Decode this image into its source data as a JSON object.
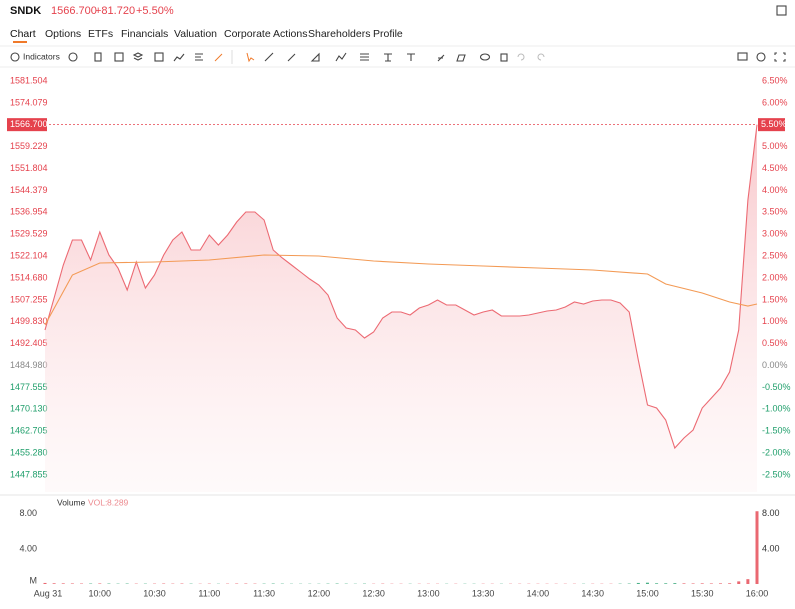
{
  "header": {
    "symbol": "SNDK",
    "price": "1566.700",
    "change": "+81.720",
    "change_pct": "+5.50%"
  },
  "tabs": [
    "Chart",
    "Options",
    "ETFs",
    "Financials",
    "Valuation",
    "Corporate Actions",
    "Shareholders",
    "Profile"
  ],
  "toolbar": {
    "indicators": "Indicators"
  },
  "chart_data": [
    {
      "type": "line",
      "fill": true,
      "xlim": [
        "09:30",
        "16:00"
      ],
      "xticks": [
        {
          "value": "09:30",
          "label": "Aug 31"
        },
        "10:00",
        "10:30",
        "11:00",
        "11:30",
        "12:00",
        "12:30",
        "13:00",
        "13:30",
        "14:00",
        "14:30",
        "15:00",
        "15:30",
        "16:00"
      ],
      "ylim": [
        1442.09,
        1585.24
      ],
      "yticks": [
        1581.504,
        1574.079,
        1559.229,
        1551.804,
        1544.379,
        1536.954,
        1529.529,
        1522.104,
        {
          "value": 1514.68,
          "label": "1514.680"
        },
        1507.255,
        {
          "value": 1499.83,
          "label": "1499.830"
        },
        1492.405,
        {
          "value": 1484.98,
          "label": "1484.980"
        },
        1477.555,
        {
          "value": 1470.13,
          "label": "1470.130"
        },
        1462.705,
        {
          "value": 1455.28,
          "label": "1455.280"
        },
        1447.855
      ],
      "y2lim": [
        -2.888,
        6.752
      ],
      "y2ticks": [
        {
          "value": 6.5,
          "label": "6.50%"
        },
        {
          "value": 6,
          "label": "6.00%"
        },
        {
          "value": 5,
          "label": "5.00%"
        },
        {
          "value": 4.5,
          "label": "4.50%"
        },
        {
          "value": 4,
          "label": "4.00%"
        },
        {
          "value": 3.5,
          "label": "3.50%"
        },
        {
          "value": 3,
          "label": "3.00%"
        },
        {
          "value": 2.5,
          "label": "2.50%"
        },
        {
          "value": 2,
          "label": "2.00%"
        },
        {
          "value": 1.5,
          "label": "1.50%"
        },
        {
          "value": 1,
          "label": "1.00%"
        },
        {
          "value": 0.5,
          "label": "0.50%"
        },
        {
          "value": 0,
          "label": "0.00%"
        },
        {
          "value": -0.5,
          "label": "-0.50%"
        },
        {
          "value": -1,
          "label": "-1.00%"
        },
        {
          "value": -1.5,
          "label": "-1.50%"
        },
        {
          "value": -2,
          "label": "-2.00%"
        },
        {
          "value": -2.5,
          "label": "-2.50%"
        }
      ],
      "up_color": "#e5424d",
      "down_color": "#1e9e6a",
      "flat_color": "#888888",
      "current": {
        "value": 1566.7,
        "label": "1566.700",
        "pct_label": "5.50%",
        "color": "#e5424d"
      },
      "series": [
        {
          "color": "#ec6a73",
          "x": [
            "09:30",
            "09:35",
            "09:40",
            "09:45",
            "09:50",
            "09:55",
            "10:00",
            "10:05",
            "10:10",
            "10:15",
            "10:20",
            "10:25",
            "10:30",
            "10:35",
            "10:40",
            "10:45",
            "10:50",
            "10:55",
            "11:00",
            "11:05",
            "11:10",
            "11:15",
            "11:20",
            "11:25",
            "11:30",
            "11:35",
            "11:40",
            "11:45",
            "11:50",
            "11:55",
            "12:00",
            "12:05",
            "12:10",
            "12:15",
            "12:20",
            "12:25",
            "12:30",
            "12:35",
            "12:40",
            "12:45",
            "12:50",
            "12:55",
            "13:00",
            "13:05",
            "13:10",
            "13:15",
            "13:20",
            "13:25",
            "13:30",
            "13:35",
            "13:40",
            "13:45",
            "13:50",
            "13:55",
            "14:00",
            "14:05",
            "14:10",
            "14:15",
            "14:20",
            "14:25",
            "14:30",
            "14:35",
            "14:40",
            "14:45",
            "14:50",
            "14:55",
            "15:00",
            "15:05",
            "15:10",
            "15:15",
            "15:20",
            "15:25",
            "15:30",
            "15:35",
            "15:40",
            "15:45",
            "15:50",
            "15:55",
            "16:00"
          ],
          "values": [
            1497.04,
            1507.89,
            1519.09,
            1527.57,
            1527.57,
            1520.78,
            1530.28,
            1522.48,
            1518.07,
            1510.6,
            1520.1,
            1511.28,
            1515.69,
            1522.48,
            1527.57,
            1530.28,
            1524.17,
            1524.17,
            1529.26,
            1525.87,
            1529.26,
            1533.67,
            1537.06,
            1537.06,
            1534.35,
            1524.17,
            1521.46,
            1519.09,
            1516.71,
            1514.34,
            1512.3,
            1508.91,
            1501.11,
            1497.71,
            1497.04,
            1494.32,
            1496.36,
            1501.11,
            1503.14,
            1503.14,
            1502.12,
            1504.5,
            1505.52,
            1507.21,
            1505.52,
            1505.52,
            1503.82,
            1502.12,
            1503.14,
            1503.82,
            1501.78,
            1501.78,
            1501.78,
            1502.12,
            1502.8,
            1503.48,
            1503.82,
            1504.84,
            1506.53,
            1505.86,
            1506.87,
            1507.21,
            1507.21,
            1506.19,
            1503.14,
            1486.86,
            1471.59,
            1470.58,
            1466.5,
            1457.01,
            1460.4,
            1463.11,
            1470.58,
            1473.97,
            1477.36,
            1482.79,
            1497.04,
            1541.13,
            1566.7
          ]
        },
        {
          "color": "#f39a55",
          "x": [
            "09:30",
            "09:45",
            "10:00",
            "10:30",
            "11:00",
            "11:30",
            "12:00",
            "12:30",
            "13:00",
            "13:30",
            "14:00",
            "14:30",
            "15:00",
            "15:10",
            "15:30",
            "15:45",
            "15:55",
            "16:00"
          ],
          "values": [
            1498.73,
            1515.69,
            1519.77,
            1520.1,
            1520.78,
            1522.48,
            1522.14,
            1520.44,
            1519.42,
            1518.75,
            1518.07,
            1517.39,
            1516.03,
            1512.64,
            1509.59,
            1506.53,
            1505.18,
            1505.86
          ]
        }
      ]
    },
    {
      "type": "bar",
      "title": "Volume",
      "value_title": "VOL:",
      "ylim": [
        0,
        9
      ],
      "yticks": [
        {
          "value": 8,
          "label": "8.00"
        },
        {
          "value": 4,
          "label": "4.00"
        },
        {
          "value": 0,
          "label": "M"
        }
      ],
      "series": [
        {
          "name": "Volume",
          "values": [
            0.12,
            0.08,
            0.07,
            0.06,
            0.05,
            0.05,
            0.06,
            0.05,
            0.04,
            0.05,
            0.04,
            0.04,
            0.04,
            0.05,
            0.04,
            0.05,
            0.04,
            0.03,
            0.04,
            0.03,
            0.04,
            0.05,
            0.05,
            0.04,
            0.04,
            0.05,
            0.04,
            0.03,
            0.03,
            0.03,
            0.03,
            0.04,
            0.05,
            0.04,
            0.03,
            0.04,
            0.03,
            0.04,
            0.03,
            0.03,
            0.03,
            0.03,
            0.03,
            0.03,
            0.03,
            0.03,
            0.03,
            0.03,
            0.03,
            0.03,
            0.03,
            0.03,
            0.03,
            0.03,
            0.03,
            0.03,
            0.03,
            0.03,
            0.03,
            0.03,
            0.03,
            0.03,
            0.03,
            0.04,
            0.05,
            0.12,
            0.15,
            0.08,
            0.08,
            0.1,
            0.07,
            0.06,
            0.07,
            0.06,
            0.07,
            0.08,
            0.3,
            0.55,
            8.289
          ]
        }
      ]
    }
  ]
}
